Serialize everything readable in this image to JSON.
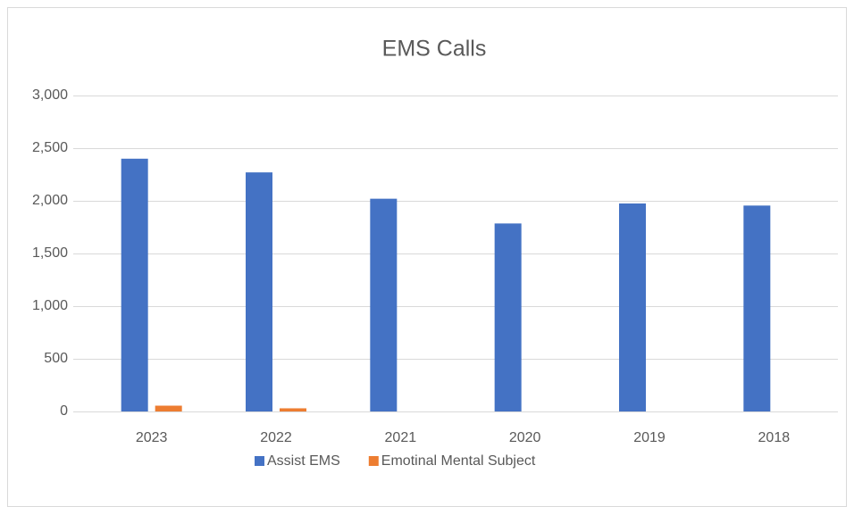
{
  "chart_data": {
    "type": "bar",
    "title": "EMS Calls",
    "categories": [
      "2023",
      "2022",
      "2021",
      "2020",
      "2019",
      "2018"
    ],
    "series": [
      {
        "name": "Assist EMS",
        "color": "#4472c4",
        "values": [
          2400,
          2270,
          2020,
          1785,
          1975,
          1955
        ]
      },
      {
        "name": "Emotinal Mental Subject",
        "color": "#ed7d31",
        "values": [
          55,
          30,
          0,
          0,
          0,
          0
        ]
      }
    ],
    "ylim": [
      0,
      3000
    ],
    "yticks": [
      0,
      500,
      {
        "value": 1000,
        "label": "1,000"
      },
      {
        "value": 1500,
        "label": "1,500"
      },
      {
        "value": 2000,
        "label": "2,000"
      },
      {
        "value": 2500,
        "label": "2,500"
      },
      {
        "value": 3000,
        "label": "3,000"
      }
    ],
    "grid": true,
    "legend": "bottom"
  }
}
